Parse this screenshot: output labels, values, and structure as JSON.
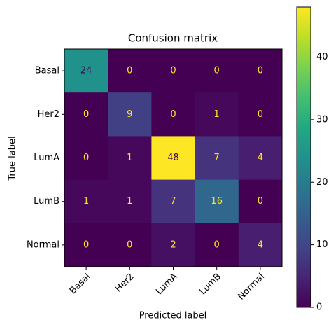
{
  "chart_data": {
    "type": "heatmap",
    "title": "Confusion matrix",
    "xlabel": "Predicted label",
    "ylabel": "True label",
    "x_categories": [
      "Basal",
      "Her2",
      "LumA",
      "LumB",
      "Normal"
    ],
    "y_categories": [
      "Basal",
      "Her2",
      "LumA",
      "LumB",
      "Normal"
    ],
    "values": [
      [
        24,
        0,
        0,
        0,
        0
      ],
      [
        0,
        9,
        0,
        1,
        0
      ],
      [
        0,
        1,
        48,
        7,
        4
      ],
      [
        1,
        1,
        7,
        16,
        0
      ],
      [
        0,
        0,
        2,
        0,
        4
      ]
    ],
    "colormap": "viridis",
    "zlim": [
      0,
      48
    ],
    "zticks": [
      0,
      10,
      20,
      30,
      40
    ]
  }
}
